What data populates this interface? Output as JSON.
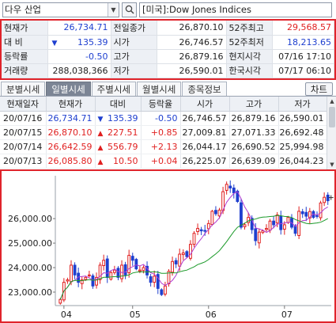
{
  "search": {
    "symbol": "다우 산업",
    "index_name": "[미국]:Dow Jones Indices"
  },
  "quote": {
    "rows": [
      {
        "l1": "현재가",
        "v1": "26,734.71",
        "c1": "blue",
        "l2": "전일종가",
        "v2": "26,870.10",
        "c2": "black",
        "l3": "52주최고",
        "v3": "29,568.57",
        "c3": "red"
      },
      {
        "l1": "대   비",
        "v1": "135.39",
        "c1": "blue",
        "arrow": "▼",
        "l2": "시가",
        "v2": "26,746.57",
        "c2": "black",
        "l3": "52주최저",
        "v3": "18,213.65",
        "c3": "blue"
      },
      {
        "l1": "등락률",
        "v1": "-0.50",
        "c1": "blue",
        "l2": "고가",
        "v2": "26,879.16",
        "c2": "black",
        "l3": "현지시각",
        "v3": "07/16 17:10",
        "c3": "black"
      },
      {
        "l1": "거래량",
        "v1": "288,038,366",
        "c1": "black",
        "l2": "저가",
        "v2": "26,590.01",
        "c2": "black",
        "l3": "한국시각",
        "v3": "07/17 06:10",
        "c3": "black"
      }
    ]
  },
  "tabs": [
    "분별시세",
    "일별시세",
    "주별시세",
    "월별시세",
    "종목정보"
  ],
  "active_tab": 1,
  "chart_button": "차트",
  "daily": {
    "headers": [
      "현재일자",
      "현재가",
      "대비",
      "등락율",
      "시가",
      "고가",
      "저가"
    ],
    "rows": [
      {
        "date": "20/07/16",
        "price": "26,734.71",
        "dir": "down",
        "arrow": "▼",
        "chg": "135.39",
        "rate": "-0.50",
        "open": "26,746.57",
        "high": "26,879.16",
        "low": "26,590.01"
      },
      {
        "date": "20/07/15",
        "price": "26,870.10",
        "dir": "up",
        "arrow": "▲",
        "chg": "227.51",
        "rate": "+0.85",
        "open": "27,009.81",
        "high": "27,071.33",
        "low": "26,692.48"
      },
      {
        "date": "20/07/14",
        "price": "26,642.59",
        "dir": "up",
        "arrow": "▲",
        "chg": "556.79",
        "rate": "+2.13",
        "open": "26,044.17",
        "high": "26,690.52",
        "low": "25,994.98"
      },
      {
        "date": "20/07/13",
        "price": "26,085.80",
        "dir": "up",
        "arrow": "▲",
        "chg": "10.50",
        "rate": "+0.04",
        "open": "26,225.07",
        "high": "26,639.09",
        "low": "26,044.23"
      }
    ]
  },
  "colors": {
    "up": "#e01f1f",
    "down": "#1e3fcf",
    "frame": "#e0242b",
    "ma_short": "#b03bd1",
    "ma_long": "#1c9a2a"
  },
  "chart_data": {
    "type": "candlestick",
    "y_ticks": [
      "26,000.00",
      "25,000.00",
      "24,000.00",
      "23,000.00"
    ],
    "y_tick_values": [
      26000,
      25000,
      24000,
      23000
    ],
    "x_labels": [
      "04",
      "05",
      "06",
      "07"
    ],
    "x_label_index": [
      1,
      20,
      41,
      62
    ],
    "ylim": [
      22450,
      27750
    ],
    "closes": [
      22700,
      23400,
      23500,
      24100,
      23700,
      23400,
      23500,
      23600,
      23700,
      23250,
      23600,
      24100,
      24300,
      23600,
      23800,
      23900,
      23600,
      24100,
      23700,
      24500,
      24300,
      23950,
      23900,
      24000,
      23700,
      23400,
      23650,
      23150,
      22900,
      23250,
      23850,
      24250,
      24150,
      24550,
      24600,
      24450,
      24950,
      25400,
      25600,
      25500,
      25500,
      25800,
      26300,
      26200,
      26350,
      27100,
      27400,
      27250,
      27050,
      26700,
      25650,
      25750,
      26050,
      25550,
      25100,
      25450,
      25500,
      25600,
      25900,
      25750,
      26150,
      25550,
      25750,
      26050,
      25650,
      25400,
      26300,
      26200,
      26100,
      26290,
      26050,
      26090,
      26640,
      26870,
      26730
    ],
    "ma_short_note": "",
    "ma_long_note": ""
  }
}
